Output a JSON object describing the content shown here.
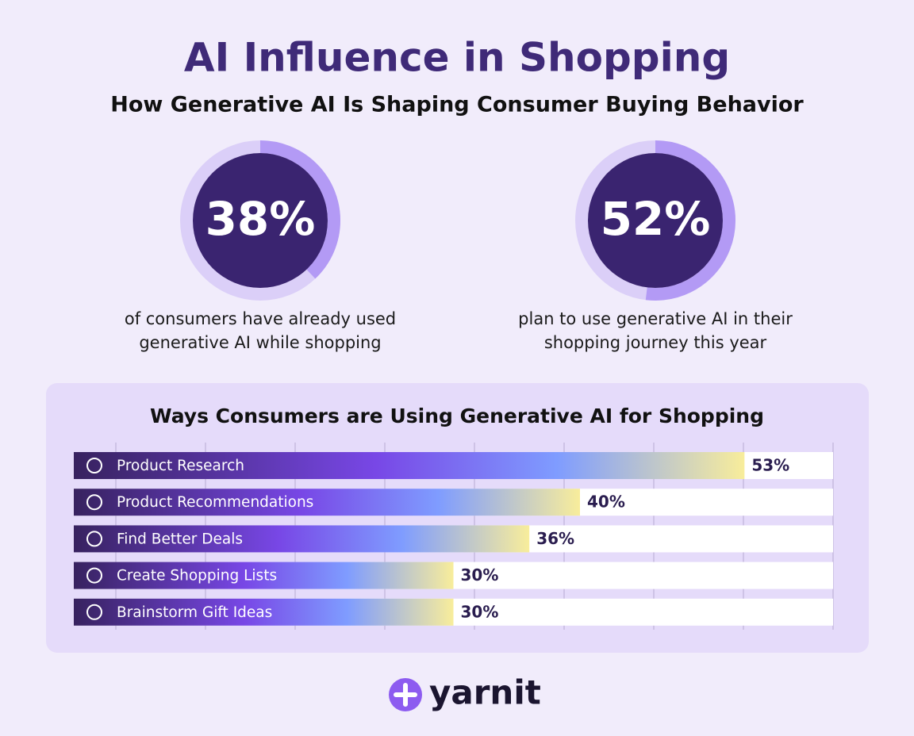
{
  "title": "AI Influence in Shopping",
  "subtitle": "How Generative AI Is Shaping Consumer Buying Behavior",
  "stats": [
    {
      "value": 38,
      "value_label": "38%",
      "caption": [
        "of consumers have already used",
        "generative AI while shopping"
      ]
    },
    {
      "value": 52,
      "value_label": "52%",
      "caption": [
        "plan to use generative AI in their",
        "shopping journey this year"
      ]
    }
  ],
  "chart_data": {
    "type": "bar",
    "orientation": "horizontal",
    "title": "Ways Consumers are Using Generative AI for Shopping",
    "categories": [
      "Product Research",
      "Product Recommendations",
      "Find Better Deals",
      "Create Shopping Lists",
      "Brainstorm Gift Ideas"
    ],
    "values": [
      53,
      40,
      36,
      30,
      30
    ],
    "value_labels": [
      "53%",
      "40%",
      "36%",
      "30%",
      "30%"
    ],
    "xlim": [
      0,
      60
    ]
  },
  "brand": "yarnit"
}
